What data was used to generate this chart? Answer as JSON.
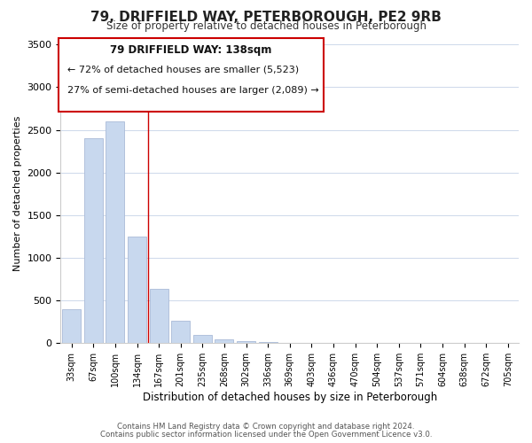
{
  "title": "79, DRIFFIELD WAY, PETERBOROUGH, PE2 9RB",
  "subtitle": "Size of property relative to detached houses in Peterborough",
  "xlabel": "Distribution of detached houses by size in Peterborough",
  "ylabel": "Number of detached properties",
  "bar_labels": [
    "33sqm",
    "67sqm",
    "100sqm",
    "134sqm",
    "167sqm",
    "201sqm",
    "235sqm",
    "268sqm",
    "302sqm",
    "336sqm",
    "369sqm",
    "403sqm",
    "436sqm",
    "470sqm",
    "504sqm",
    "537sqm",
    "571sqm",
    "604sqm",
    "638sqm",
    "672sqm",
    "705sqm"
  ],
  "bar_values": [
    400,
    2400,
    2600,
    1250,
    640,
    260,
    100,
    50,
    25,
    10,
    5,
    2,
    0,
    0,
    0,
    0,
    0,
    0,
    0,
    0,
    0
  ],
  "bar_color": "#c8d8ee",
  "bar_edge_color": "#aabbd8",
  "highlight_index": 3,
  "vline_color": "#cc0000",
  "ylim": [
    0,
    3500
  ],
  "yticks": [
    0,
    500,
    1000,
    1500,
    2000,
    2500,
    3000,
    3500
  ],
  "annotation_box_color": "#ffffff",
  "annotation_border_color": "#cc0000",
  "annotation_line1": "79 DRIFFIELD WAY: 138sqm",
  "annotation_line2": "← 72% of detached houses are smaller (5,523)",
  "annotation_line3": "27% of semi-detached houses are larger (2,089) →",
  "footer_line1": "Contains HM Land Registry data © Crown copyright and database right 2024.",
  "footer_line2": "Contains public sector information licensed under the Open Government Licence v3.0.",
  "background_color": "#ffffff",
  "grid_color": "#cdd8ea"
}
